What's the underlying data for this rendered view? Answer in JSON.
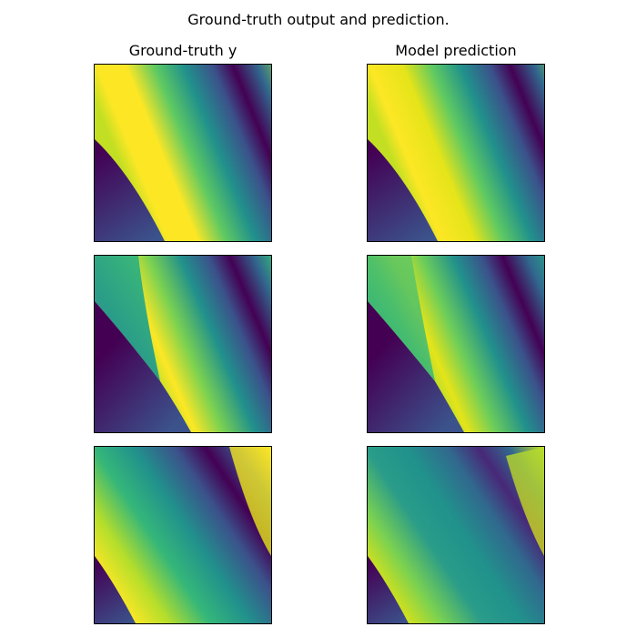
{
  "chart_data": {
    "type": "heatmap",
    "title": "Ground-truth output and prediction.",
    "colormap": "viridis",
    "columns": [
      "Ground-truth y",
      "Model prediction"
    ],
    "rows": 3,
    "axes_visible": false,
    "panels": [
      {
        "row": 0,
        "col": 0,
        "column": "Ground-truth y"
      },
      {
        "row": 0,
        "col": 1,
        "column": "Model prediction"
      },
      {
        "row": 1,
        "col": 0,
        "column": "Ground-truth y"
      },
      {
        "row": 1,
        "col": 1,
        "column": "Model prediction"
      },
      {
        "row": 2,
        "col": 0,
        "column": "Ground-truth y"
      },
      {
        "row": 2,
        "col": 1,
        "column": "Model prediction"
      }
    ]
  }
}
